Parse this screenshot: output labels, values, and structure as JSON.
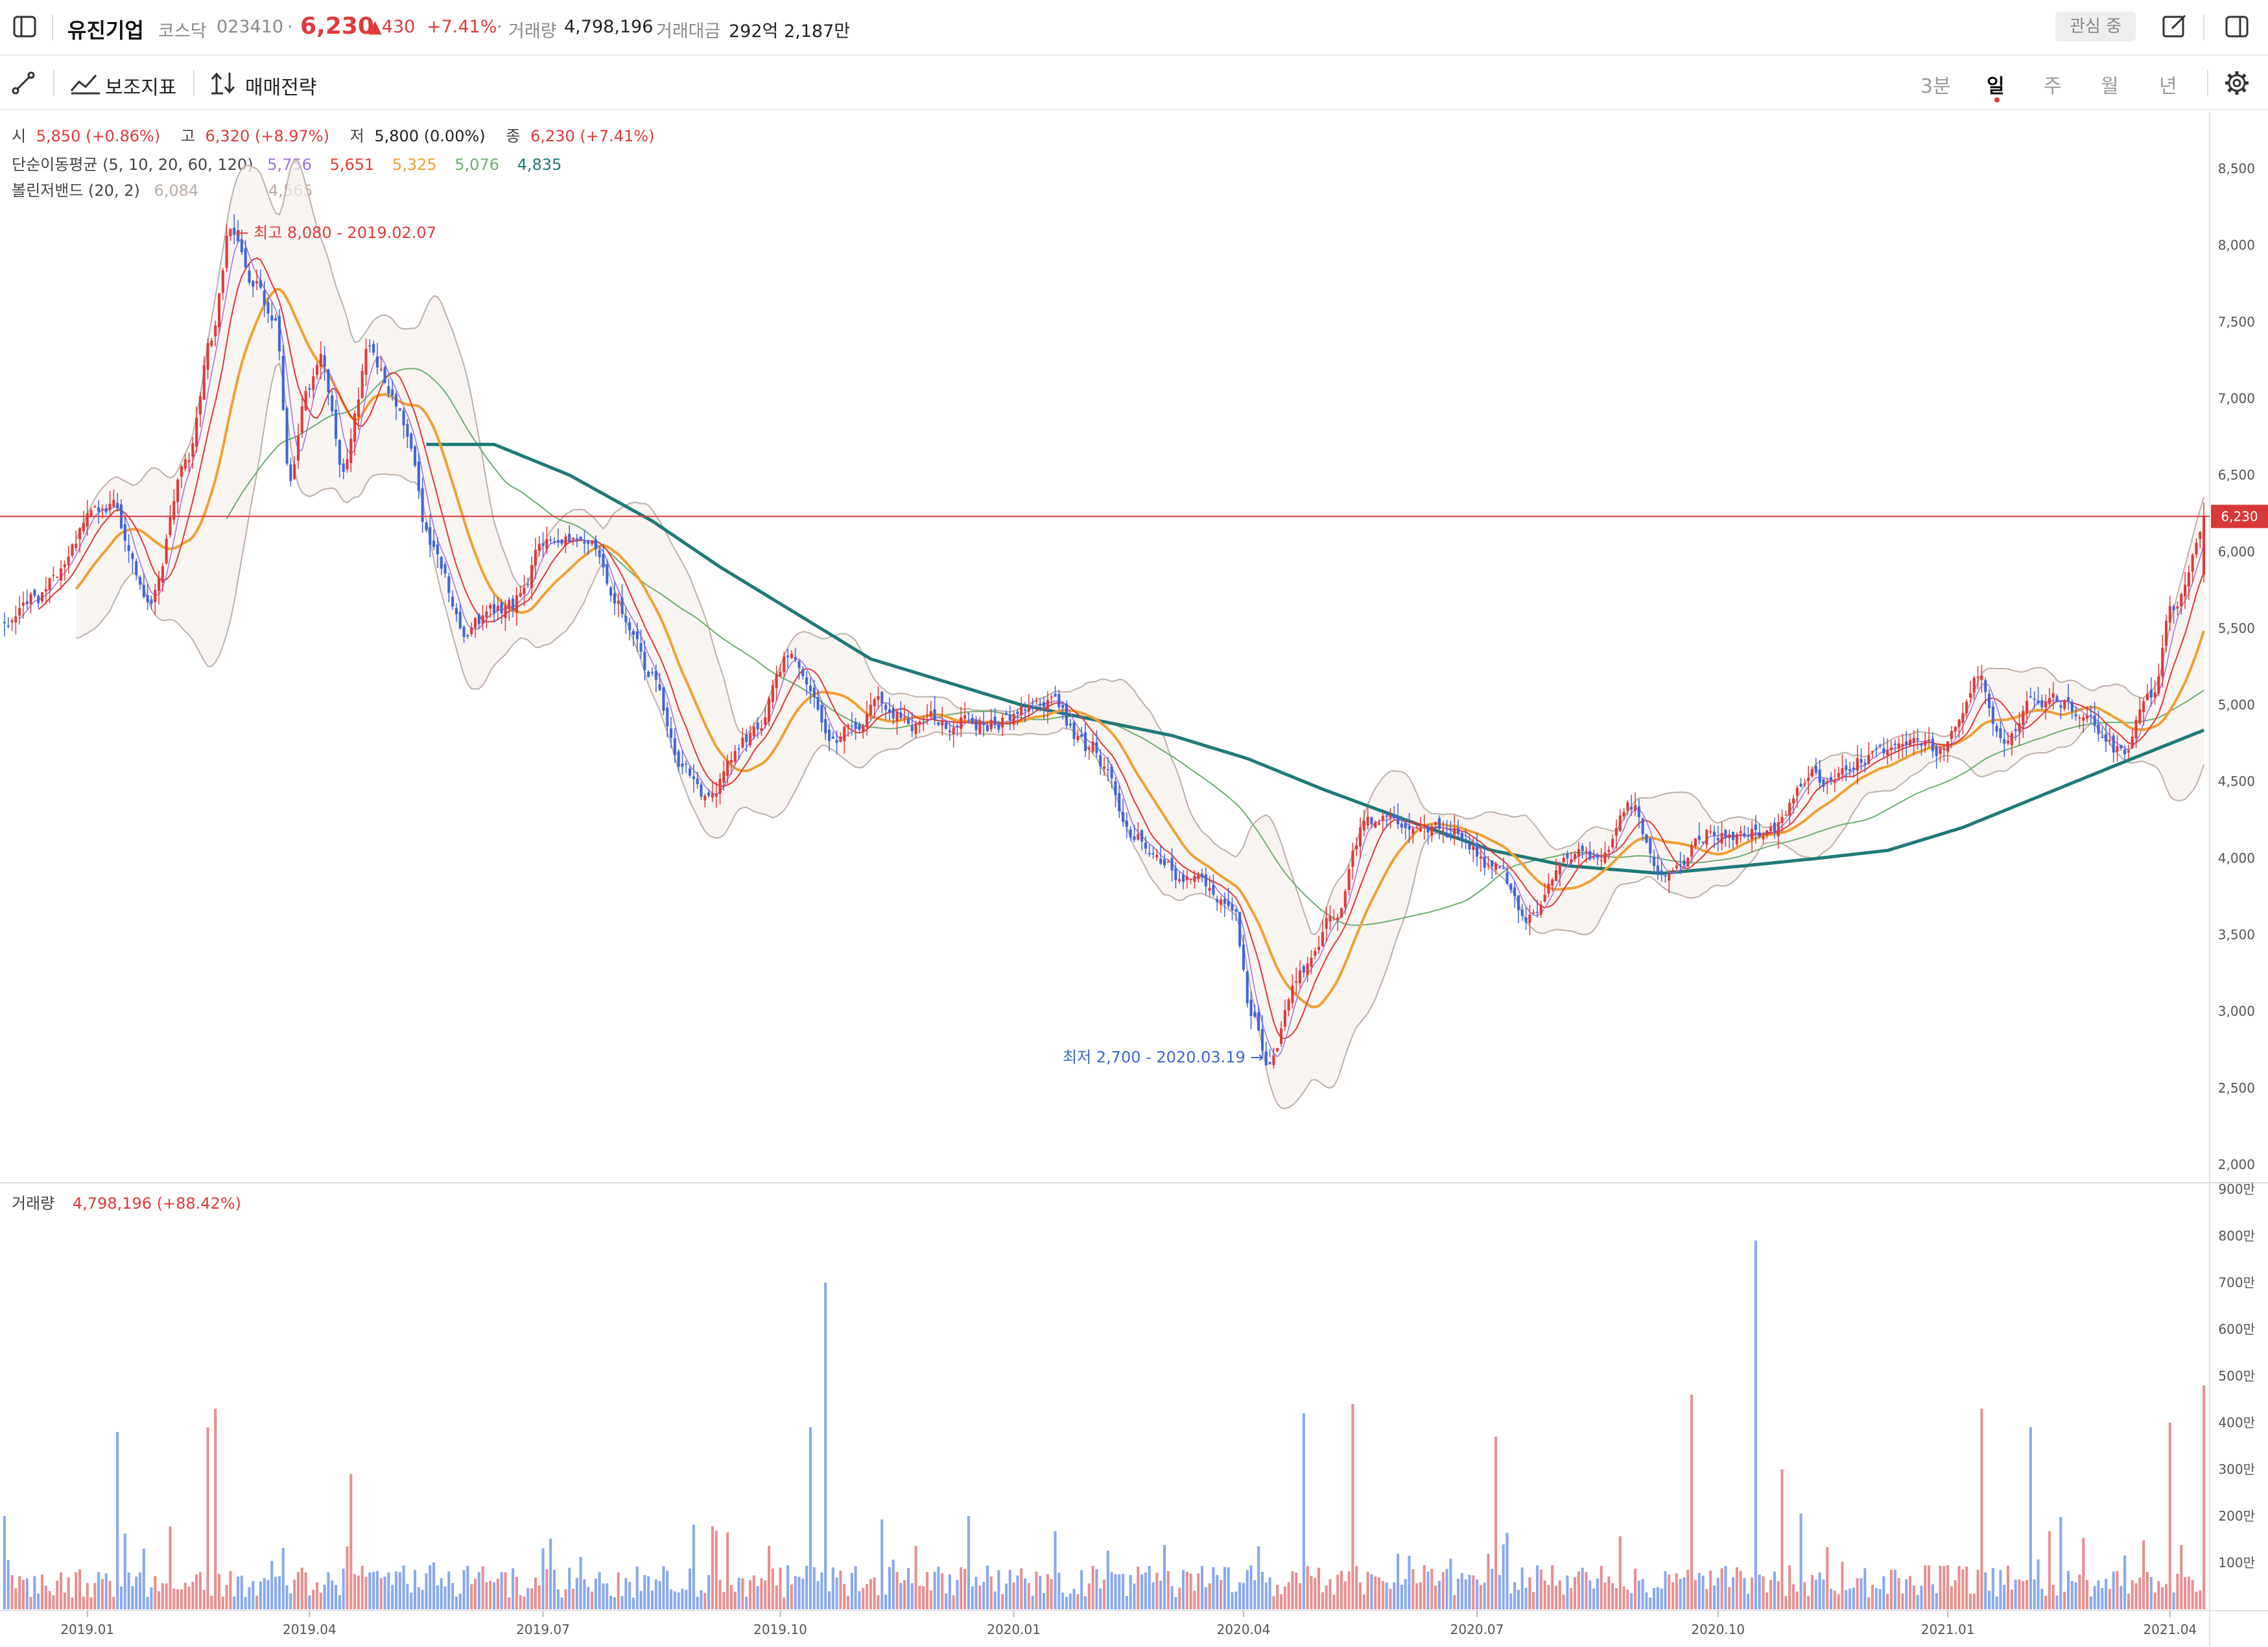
{
  "header": {
    "name": "유진기업",
    "market": "코스닥",
    "code": "023410",
    "sep": "·",
    "price": "6,230",
    "change": "▲430",
    "change_pct": "+7.41%",
    "volume_label": "거래량",
    "volume": "4,798,196",
    "amount_label": "거래대금",
    "amount": "292억 2,187만",
    "watch_label": "관심 중"
  },
  "toolbar": {
    "indicator_label": "보조지표",
    "strategy_label": "매매전략",
    "periods": [
      "3분",
      "일",
      "주",
      "월",
      "년"
    ],
    "active_period": "일"
  },
  "legend": {
    "open_label": "시",
    "open": "5,850 (+0.86%)",
    "high_label": "고",
    "high": "6,320 (+8.97%)",
    "low_label": "저",
    "low": "5,800 (0.00%)",
    "close_label": "종",
    "close": "6,230 (+7.41%)",
    "sma_label": "단순이동평균 (5, 10, 20, 60, 120)",
    "sma_values": [
      "5,756",
      "5,651",
      "5,325",
      "5,076",
      "4,835"
    ],
    "sma_colors": [
      "#a070e0",
      "#e03a3a",
      "#f0a030",
      "#6cb070",
      "#1e7a78"
    ],
    "bb_label": "볼린저밴드 (20, 2)",
    "bb_upper": "6,084",
    "bb_lower": "4,565",
    "volume_label": "거래량",
    "volume_value": "4,798,196 (+88.42%)"
  },
  "annotations": {
    "high": "← 최고 8,080 - 2019.02.07",
    "low": "최저 2,700 - 2020.03.19 →"
  },
  "price_axis": {
    "ticks": [
      "8,500",
      "8,000",
      "7,500",
      "7,000",
      "6,500",
      "6,000",
      "5,500",
      "5,000",
      "4,500",
      "4,000",
      "3,500",
      "3,000",
      "2,500",
      "2,000"
    ],
    "tick_values": [
      8500,
      8000,
      7500,
      7000,
      6500,
      6000,
      5500,
      5000,
      4500,
      4000,
      3500,
      3000,
      2500,
      2000
    ],
    "current_label": "6,230",
    "current_value": 6230
  },
  "volume_axis": {
    "ticks": [
      "900만",
      "800만",
      "700만",
      "600만",
      "500만",
      "400만",
      "300만",
      "200만",
      "100만"
    ],
    "tick_values": [
      900,
      800,
      700,
      600,
      500,
      400,
      300,
      200,
      100
    ]
  },
  "time_axis": {
    "ticks": [
      "2019.01",
      "2019.04",
      "2019.07",
      "2019.10",
      "2020.01",
      "2020.04",
      "2020.07",
      "2020.10",
      "2021.01",
      "2021.04"
    ],
    "tick_index": [
      22,
      81,
      143,
      206,
      268,
      329,
      391,
      455,
      516,
      575
    ]
  },
  "colors": {
    "up": "#e03a3a",
    "down": "#3e66d8",
    "up_vol": "#e88f8f",
    "down_vol": "#88a9ee",
    "bb": "#bfb0a8"
  },
  "chart_data": {
    "type": "candlestick",
    "x_range": [
      "2018.11",
      "2021.04"
    ],
    "ylim": [
      2000,
      8700
    ],
    "volume_ylim_10k": [
      0,
      900
    ],
    "close_anchors": [
      [
        0,
        5500
      ],
      [
        8,
        5700
      ],
      [
        16,
        5900
      ],
      [
        22,
        6200
      ],
      [
        28,
        6300
      ],
      [
        38,
        5700
      ],
      [
        48,
        6500
      ],
      [
        55,
        7300
      ],
      [
        60,
        8080
      ],
      [
        66,
        7800
      ],
      [
        72,
        7500
      ],
      [
        76,
        6500
      ],
      [
        80,
        7000
      ],
      [
        84,
        7300
      ],
      [
        90,
        6600
      ],
      [
        97,
        7300
      ],
      [
        104,
        7000
      ],
      [
        114,
        6000
      ],
      [
        122,
        5500
      ],
      [
        134,
        5600
      ],
      [
        144,
        6100
      ],
      [
        155,
        6000
      ],
      [
        162,
        5700
      ],
      [
        172,
        5200
      ],
      [
        180,
        4600
      ],
      [
        185,
        4400
      ],
      [
        198,
        4800
      ],
      [
        208,
        5300
      ],
      [
        220,
        4800
      ],
      [
        232,
        5000
      ],
      [
        245,
        4900
      ],
      [
        262,
        4900
      ],
      [
        275,
        5050
      ],
      [
        288,
        4700
      ],
      [
        300,
        4200
      ],
      [
        315,
        3900
      ],
      [
        326,
        3700
      ],
      [
        331,
        3000
      ],
      [
        336,
        2700
      ],
      [
        344,
        3300
      ],
      [
        352,
        3600
      ],
      [
        361,
        4200
      ],
      [
        372,
        4300
      ],
      [
        385,
        4200
      ],
      [
        397,
        3900
      ],
      [
        404,
        3600
      ],
      [
        414,
        3900
      ],
      [
        425,
        4000
      ],
      [
        432,
        4300
      ],
      [
        440,
        3900
      ],
      [
        453,
        4200
      ],
      [
        468,
        4200
      ],
      [
        482,
        4500
      ],
      [
        498,
        4700
      ],
      [
        512,
        4700
      ],
      [
        524,
        5200
      ],
      [
        530,
        4800
      ],
      [
        540,
        5100
      ],
      [
        554,
        4900
      ],
      [
        562,
        4700
      ],
      [
        570,
        5000
      ],
      [
        575,
        5600
      ],
      [
        580,
        5900
      ],
      [
        584,
        6230
      ]
    ],
    "volume_spikes_10k": [
      [
        0,
        200
      ],
      [
        30,
        380
      ],
      [
        54,
        390
      ],
      [
        56,
        430
      ],
      [
        92,
        290
      ],
      [
        214,
        390
      ],
      [
        218,
        700
      ],
      [
        345,
        420
      ],
      [
        358,
        440
      ],
      [
        396,
        370
      ],
      [
        448,
        460
      ],
      [
        465,
        790
      ],
      [
        472,
        300
      ],
      [
        525,
        430
      ],
      [
        538,
        390
      ],
      [
        575,
        400
      ],
      [
        584,
        480
      ]
    ],
    "sma120_anchors": [
      [
        112,
        6700
      ],
      [
        130,
        6700
      ],
      [
        150,
        6500
      ],
      [
        172,
        6200
      ],
      [
        190,
        5900
      ],
      [
        210,
        5600
      ],
      [
        230,
        5300
      ],
      [
        250,
        5150
      ],
      [
        270,
        5000
      ],
      [
        290,
        4900
      ],
      [
        310,
        4800
      ],
      [
        330,
        4650
      ],
      [
        350,
        4450
      ],
      [
        372,
        4250
      ],
      [
        395,
        4050
      ],
      [
        415,
        3950
      ],
      [
        440,
        3900
      ],
      [
        462,
        3950
      ],
      [
        482,
        4000
      ],
      [
        500,
        4050
      ],
      [
        520,
        4200
      ],
      [
        540,
        4400
      ],
      [
        560,
        4600
      ],
      [
        584,
        4835
      ]
    ]
  }
}
